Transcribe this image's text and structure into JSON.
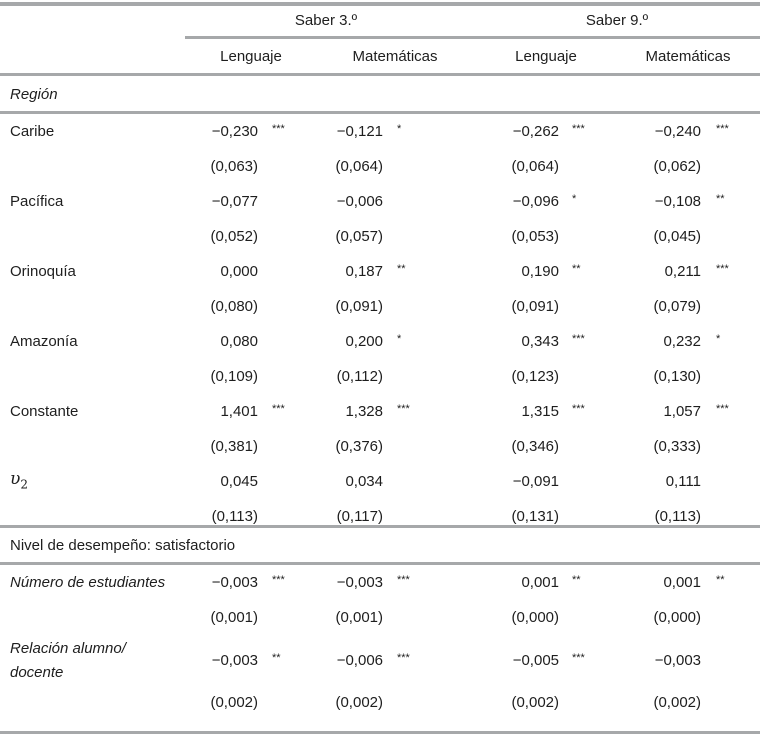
{
  "header": {
    "groups": [
      "Saber 3.º",
      "Saber 9.º"
    ],
    "subjects": [
      "Lenguaje",
      "Matemáticas",
      "Lenguaje",
      "Matemáticas"
    ]
  },
  "sections": [
    {
      "title": "Región",
      "title_italic": true,
      "rows": [
        {
          "label": "Caribe",
          "values": [
            [
              "−0,230",
              "***"
            ],
            [
              "−0,121",
              "*"
            ],
            [
              "−0,262",
              "***"
            ],
            [
              "−0,240",
              "***"
            ]
          ],
          "se": [
            "(0,063)",
            "(0,064)",
            "(0,064)",
            "(0,062)"
          ]
        },
        {
          "label": "Pacífica",
          "values": [
            [
              "−0,077",
              ""
            ],
            [
              "−0,006",
              ""
            ],
            [
              "−0,096",
              "*"
            ],
            [
              "−0,108",
              "**"
            ]
          ],
          "se": [
            "(0,052)",
            "(0,057)",
            "(0,053)",
            "(0,045)"
          ]
        },
        {
          "label": "Orinoquía",
          "values": [
            [
              "0,000",
              ""
            ],
            [
              "0,187",
              "**"
            ],
            [
              "0,190",
              "**"
            ],
            [
              "0,211",
              "***"
            ]
          ],
          "se": [
            "(0,080)",
            "(0,091)",
            "(0,091)",
            "(0,079)"
          ]
        },
        {
          "label": "Amazonía",
          "values": [
            [
              "0,080",
              ""
            ],
            [
              "0,200",
              "*"
            ],
            [
              "0,343",
              "***"
            ],
            [
              "0,232",
              "*"
            ]
          ],
          "se": [
            "(0,109)",
            "(0,112)",
            "(0,123)",
            "(0,130)"
          ]
        },
        {
          "label": "Constante",
          "values": [
            [
              "1,401",
              "***"
            ],
            [
              "1,328",
              "***"
            ],
            [
              "1,315",
              "***"
            ],
            [
              "1,057",
              "***"
            ]
          ],
          "se": [
            "(0,381)",
            "(0,376)",
            "(0,346)",
            "(0,333)"
          ]
        },
        {
          "label": "υ",
          "label_sub": "2",
          "math": true,
          "values": [
            [
              "0,045",
              ""
            ],
            [
              "0,034",
              ""
            ],
            [
              "−0,091",
              ""
            ],
            [
              "0,111",
              ""
            ]
          ],
          "se": [
            "(0,113)",
            "(0,117)",
            "(0,131)",
            "(0,113)"
          ]
        }
      ]
    },
    {
      "title": "Nivel de desempeño: satisfactorio",
      "title_italic": false,
      "rows": [
        {
          "label": "Número de estudiantes",
          "italic": true,
          "values": [
            [
              "−0,003",
              "***"
            ],
            [
              "−0,003",
              "***"
            ],
            [
              "0,001",
              "**"
            ],
            [
              "0,001",
              "**"
            ]
          ],
          "se": [
            "(0,001)",
            "(0,001)",
            "(0,000)",
            "(0,000)"
          ]
        },
        {
          "label": "Relación alumno/",
          "label2": "docente",
          "italic": true,
          "values": [
            [
              "−0,003",
              "**"
            ],
            [
              "−0,006",
              "***"
            ],
            [
              "−0,005",
              "***"
            ],
            [
              "−0,003",
              ""
            ]
          ],
          "se": [
            "(0,002)",
            "(0,002)",
            "(0,002)",
            "(0,002)"
          ]
        }
      ]
    }
  ]
}
